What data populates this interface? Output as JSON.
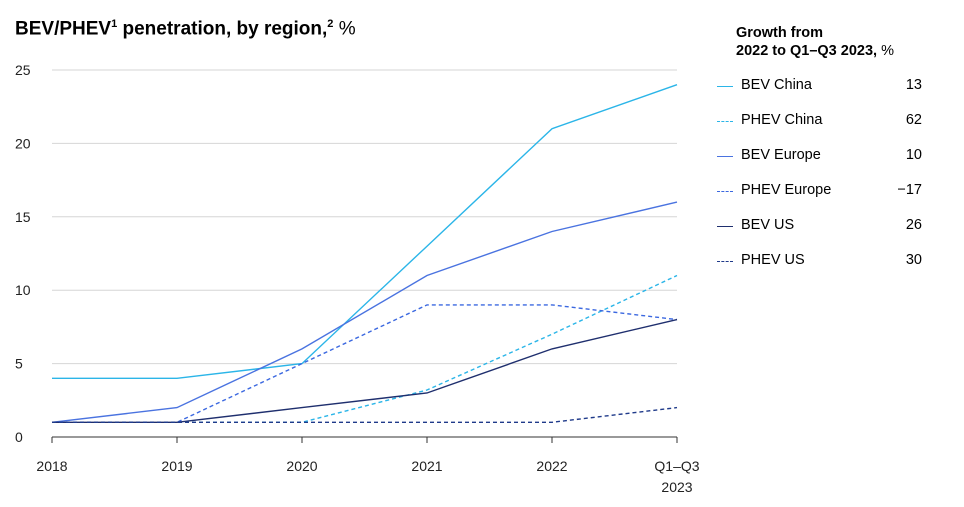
{
  "chart_data": {
    "type": "line",
    "title_main": "BEV/PHEV",
    "title_sup1": "1",
    "title_mid": " penetration, by region,",
    "title_sup2": "2",
    "title_unit": " %",
    "categories": [
      "2018",
      "2019",
      "2020",
      "2021",
      "2022",
      "Q1–Q3 2023"
    ],
    "category_labels": [
      [
        "2018"
      ],
      [
        "2019"
      ],
      [
        "2020"
      ],
      [
        "2021"
      ],
      [
        "2022"
      ],
      [
        "Q1–Q3",
        "2023"
      ]
    ],
    "ylim": [
      0,
      25
    ],
    "yticks": [
      0,
      5,
      10,
      15,
      20,
      25
    ],
    "grid": true,
    "legend_title_line1": "Growth from",
    "legend_title_line2": "2022 to Q1–Q3 2023,",
    "legend_title_unit": " %",
    "legend_position": "right",
    "series": [
      {
        "name": "BEV China",
        "growth": "13",
        "color": "#2bb5e8",
        "dashed": false,
        "values": [
          4,
          4,
          5,
          13,
          21,
          24
        ]
      },
      {
        "name": "PHEV China",
        "growth": "62",
        "color": "#2bb5e8",
        "dashed": true,
        "values": [
          1,
          1,
          1,
          3.2,
          7,
          11
        ]
      },
      {
        "name": "BEV Europe",
        "growth": "10",
        "color": "#4a73e0",
        "dashed": false,
        "values": [
          1,
          2,
          6,
          11,
          14,
          16
        ]
      },
      {
        "name": "PHEV Europe",
        "growth": "−17",
        "color": "#3b68e0",
        "dashed": true,
        "values": [
          1,
          1,
          5,
          9,
          9,
          8
        ]
      },
      {
        "name": "BEV US",
        "growth": "26",
        "color": "#1f2f6e",
        "dashed": false,
        "values": [
          1,
          1,
          2,
          3,
          6,
          8
        ]
      },
      {
        "name": "PHEV US",
        "growth": "30",
        "color": "#1f3a8a",
        "dashed": true,
        "values": [
          1,
          1,
          1,
          1,
          1,
          2
        ]
      }
    ]
  }
}
